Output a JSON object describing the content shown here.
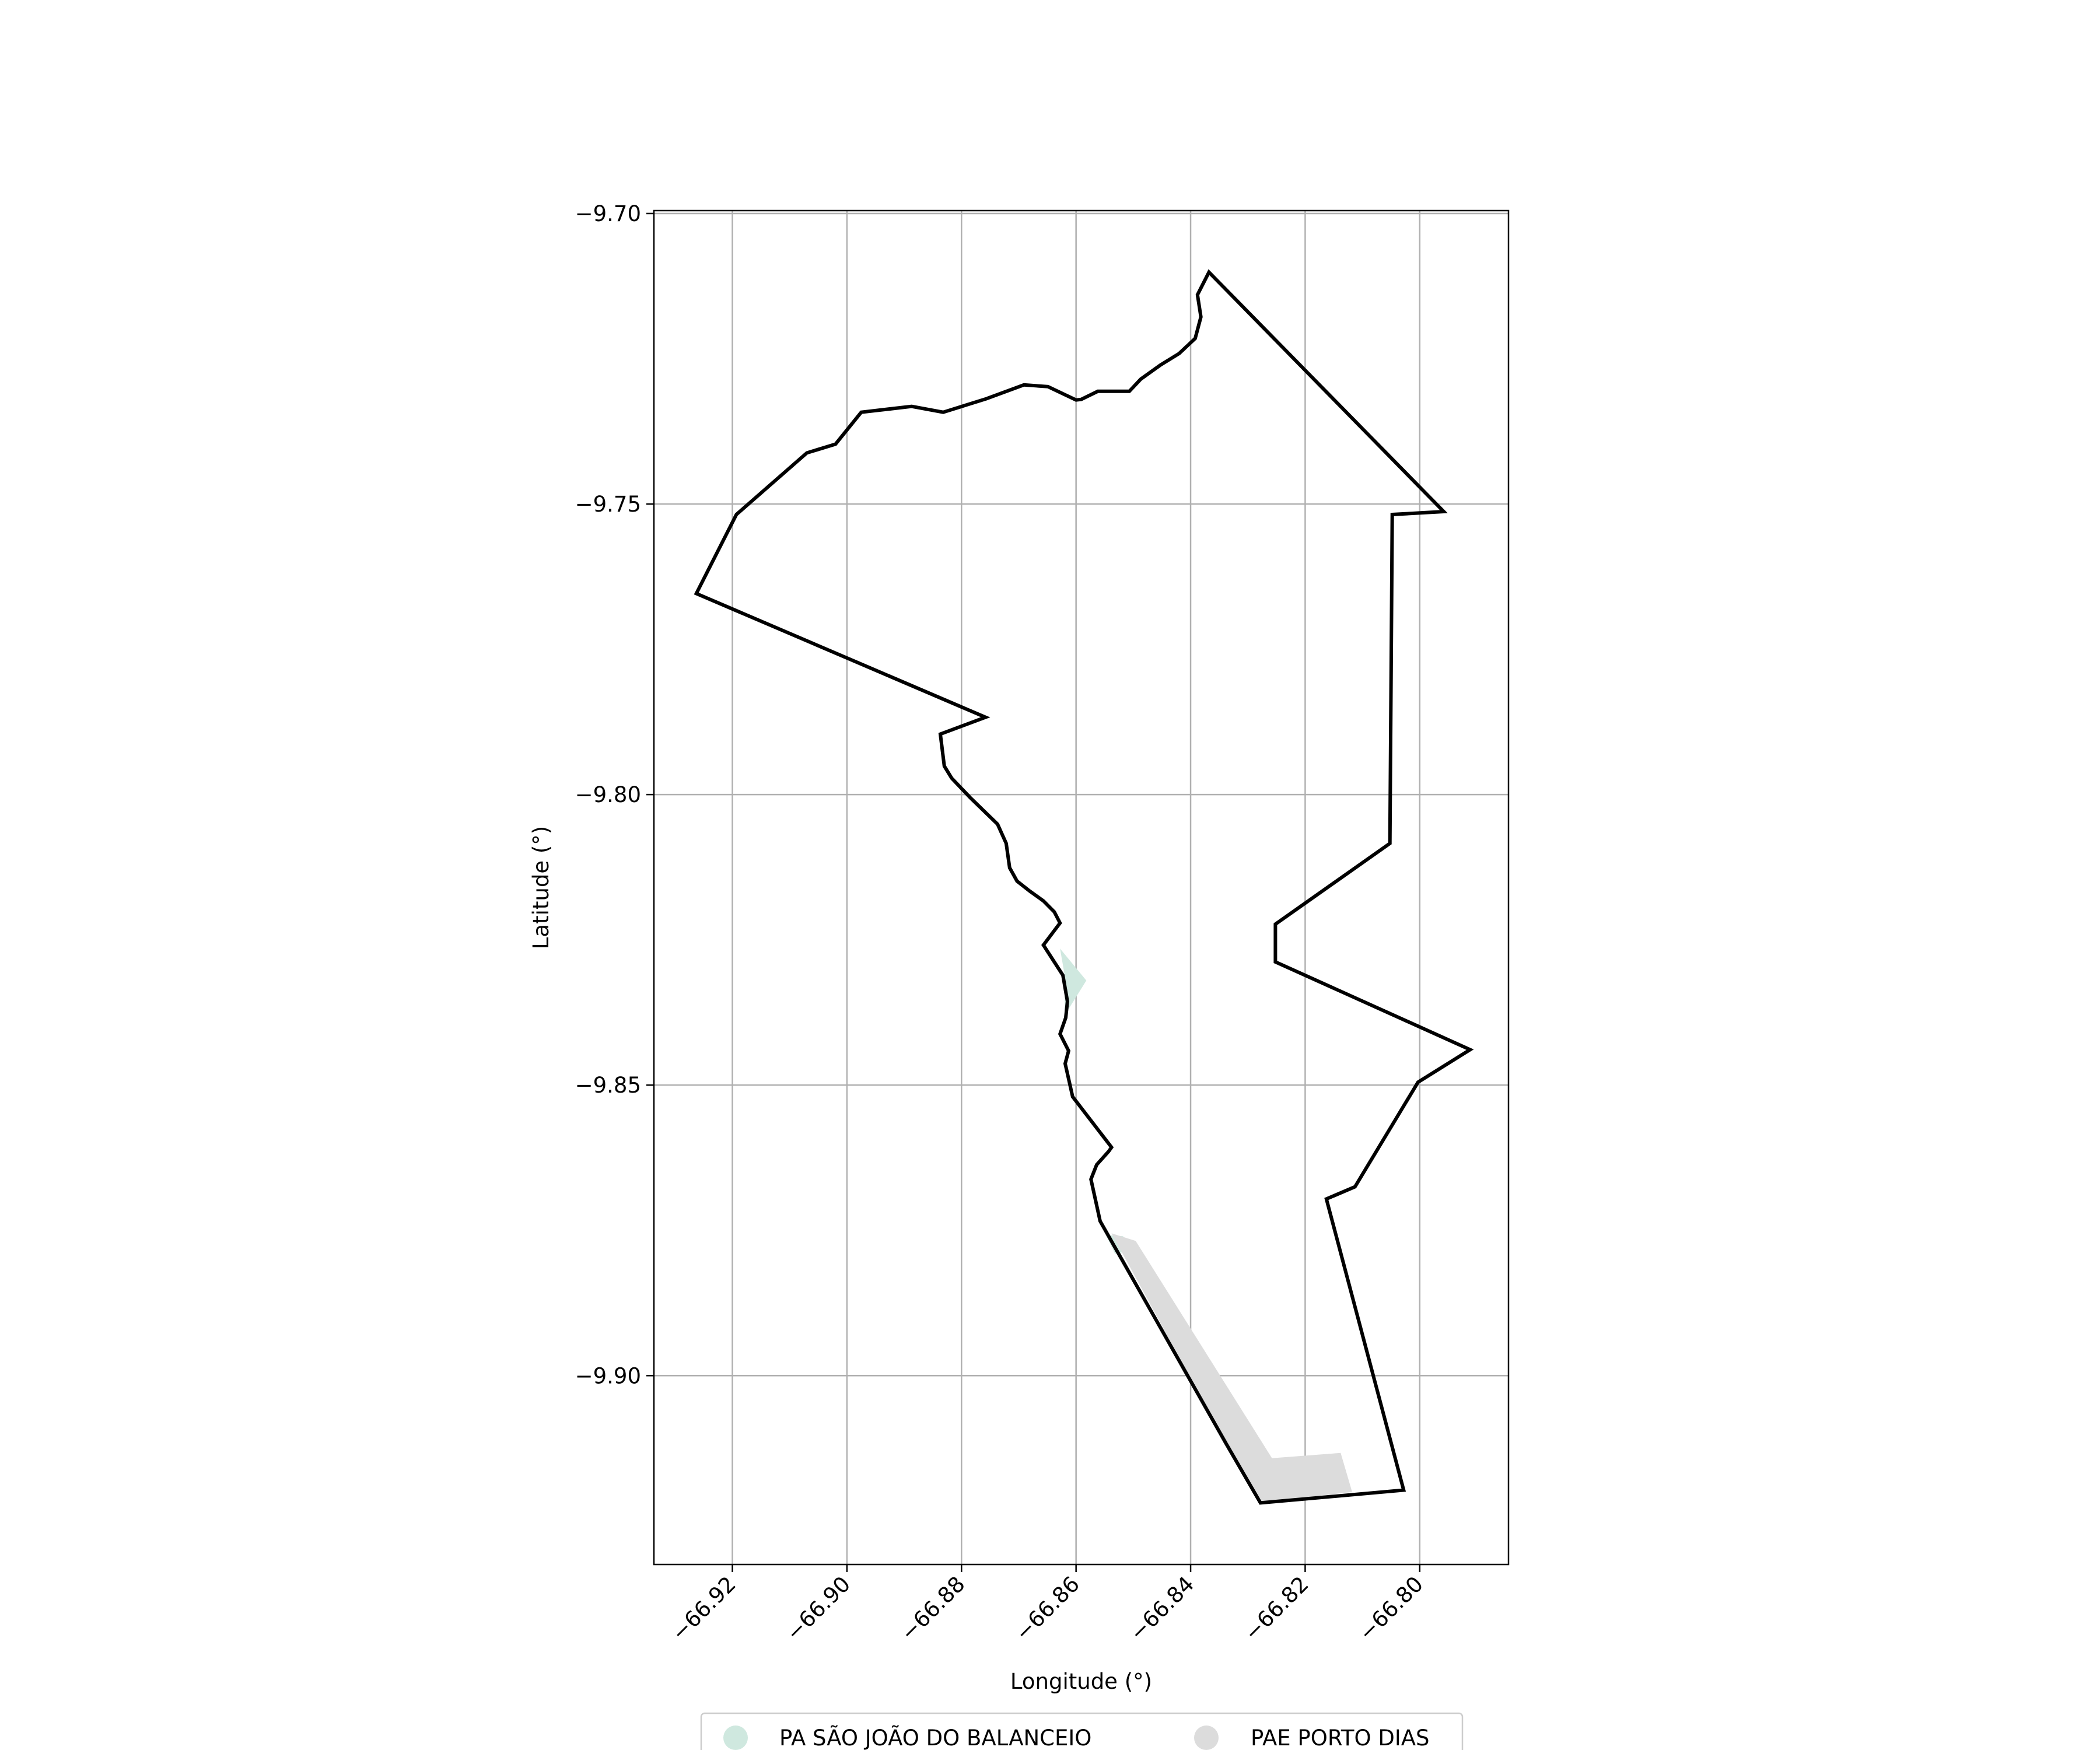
{
  "chart_data": {
    "type": "map",
    "xlabel": "Longitude (°)",
    "ylabel": "Latitude (°)",
    "xlim": [
      -66.9337,
      -66.7845
    ],
    "ylim": [
      -9.9325,
      -9.6995
    ],
    "grid": true,
    "x_ticks": [
      -66.92,
      -66.9,
      -66.88,
      -66.86,
      -66.84,
      -66.82,
      -66.8
    ],
    "x_tick_labels": [
      "−66.92",
      "−66.90",
      "−66.88",
      "−66.86",
      "−66.84",
      "−66.82",
      "−66.80"
    ],
    "y_ticks": [
      -9.7,
      -9.75,
      -9.8,
      -9.85,
      -9.9
    ],
    "y_tick_labels": [
      "−9.70",
      "−9.75",
      "−9.80",
      "−9.85",
      "−9.90"
    ],
    "legend_position": "bottom-center",
    "legend": [
      {
        "label": "PA SÃO JOÃO DO BALANCEIO",
        "color": "#cfe8df"
      },
      {
        "label": "PAE PORTO DIAS",
        "color": "#dcdcdc"
      }
    ],
    "boundary": {
      "color": "#000000",
      "coordinates": [
        [
          -66.8368,
          -9.7101
        ],
        [
          -66.7958,
          -9.7513
        ],
        [
          -66.8048,
          -9.7518
        ],
        [
          -66.8052,
          -9.8084
        ],
        [
          -66.8252,
          -9.8223
        ],
        [
          -66.8252,
          -9.8288
        ],
        [
          -66.7912,
          -9.8439
        ],
        [
          -66.8003,
          -9.8495
        ],
        [
          -66.8113,
          -9.8675
        ],
        [
          -66.8163,
          -9.8696
        ],
        [
          -66.8028,
          -9.9197
        ],
        [
          -66.8278,
          -9.9219
        ],
        [
          -66.8338,
          -9.9117
        ],
        [
          -66.8558,
          -9.8734
        ],
        [
          -66.8574,
          -9.8662
        ],
        [
          -66.8564,
          -9.8637
        ],
        [
          -66.8543,
          -9.8614
        ],
        [
          -66.8538,
          -9.8607
        ],
        [
          -66.8606,
          -9.852
        ],
        [
          -66.8619,
          -9.8463
        ],
        [
          -66.8613,
          -9.8441
        ],
        [
          -66.8628,
          -9.8412
        ],
        [
          -66.8618,
          -9.8384
        ],
        [
          -66.8615,
          -9.8356
        ],
        [
          -66.8623,
          -9.8311
        ],
        [
          -66.8657,
          -9.8259
        ],
        [
          -66.8628,
          -9.8221
        ],
        [
          -66.8638,
          -9.8202
        ],
        [
          -66.8657,
          -9.8183
        ],
        [
          -66.8681,
          -9.8166
        ],
        [
          -66.8703,
          -9.8149
        ],
        [
          -66.8716,
          -9.8126
        ],
        [
          -66.8722,
          -9.8084
        ],
        [
          -66.8737,
          -9.8051
        ],
        [
          -66.8785,
          -9.8005
        ],
        [
          -66.8817,
          -9.7972
        ],
        [
          -66.883,
          -9.7951
        ],
        [
          -66.8837,
          -9.7896
        ],
        [
          -66.8758,
          -9.7867
        ],
        [
          -66.9263,
          -9.7654
        ],
        [
          -66.9193,
          -9.7518
        ],
        [
          -66.907,
          -9.7412
        ],
        [
          -66.902,
          -9.7397
        ],
        [
          -66.8975,
          -9.7342
        ],
        [
          -66.8887,
          -9.7332
        ],
        [
          -66.8832,
          -9.7342
        ],
        [
          -66.8757,
          -9.7319
        ],
        [
          -66.8691,
          -9.7295
        ],
        [
          -66.8649,
          -9.7298
        ],
        [
          -66.86,
          -9.7321
        ],
        [
          -66.8591,
          -9.732
        ],
        [
          -66.8562,
          -9.7306
        ],
        [
          -66.8507,
          -9.7306
        ],
        [
          -66.8487,
          -9.7285
        ],
        [
          -66.8453,
          -9.7261
        ],
        [
          -66.842,
          -9.7241
        ],
        [
          -66.8392,
          -9.7215
        ],
        [
          -66.8382,
          -9.7178
        ],
        [
          -66.8388,
          -9.714
        ],
        [
          -66.8368,
          -9.7101
        ]
      ]
    },
    "areas": [
      {
        "name": "PA SÃO JOÃO DO BALANCEIO",
        "color": "#cfe8df",
        "coordinates": [
          [
            -66.8628,
            -9.8265
          ],
          [
            -66.8582,
            -9.832
          ],
          [
            -66.862,
            -9.838
          ],
          [
            -66.862,
            -9.831
          ]
        ]
      },
      {
        "name": "PA SÃO JOÃO DO BALANCEIO",
        "color": "#cfe8df",
        "coordinates": [
          [
            -66.8548,
            -9.8758
          ],
          [
            -66.8532,
            -9.879
          ],
          [
            -66.8502,
            -9.8785
          ],
          [
            -66.8518,
            -9.876
          ]
        ]
      },
      {
        "name": "PAE PORTO DIAS",
        "color": "#dcdcdc",
        "coordinates": [
          [
            -66.8538,
            -9.8755
          ],
          [
            -66.8496,
            -9.8768
          ],
          [
            -66.8258,
            -9.9142
          ],
          [
            -66.8138,
            -9.9133
          ],
          [
            -66.8118,
            -9.92
          ],
          [
            -66.8278,
            -9.9219
          ],
          [
            -66.8338,
            -9.9117
          ]
        ]
      }
    ]
  }
}
